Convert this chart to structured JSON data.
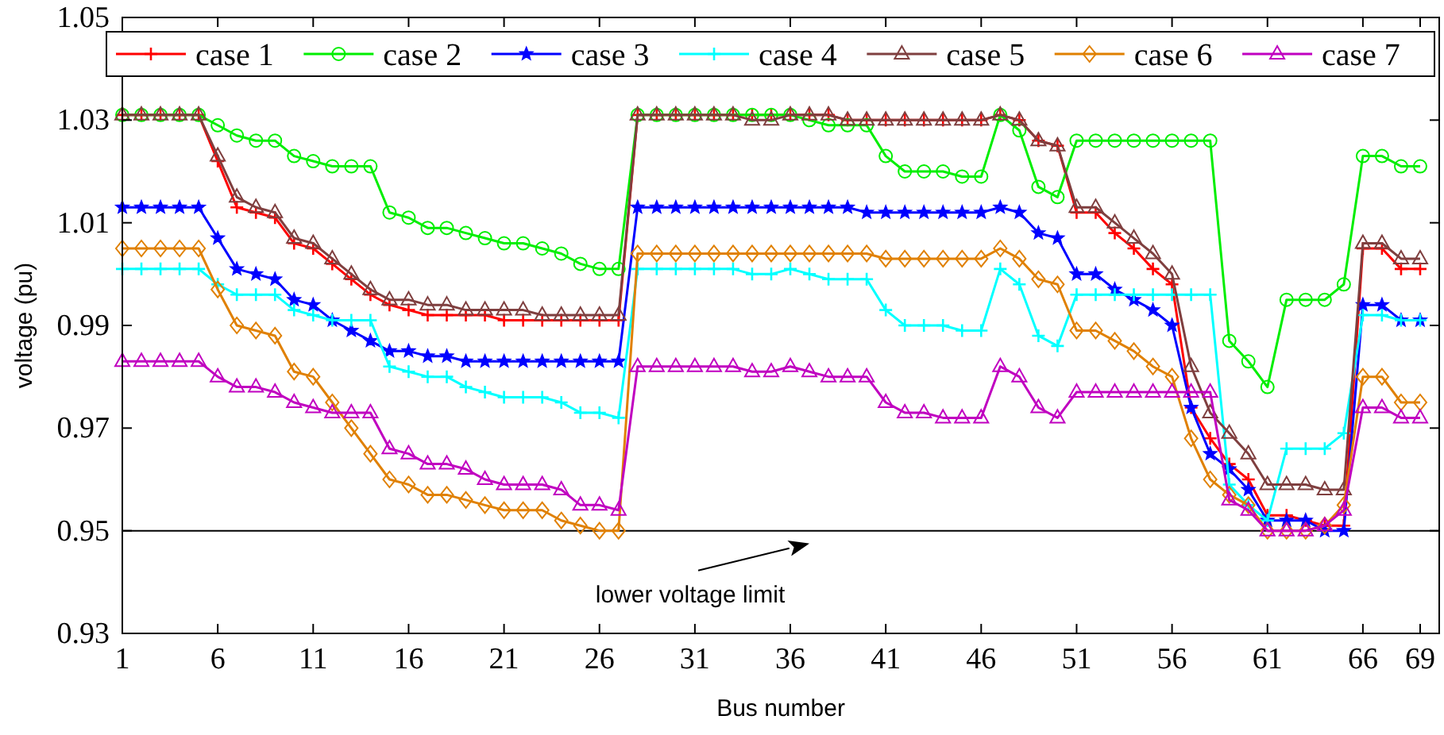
{
  "chart_data": {
    "type": "line",
    "xlabel": "Bus number",
    "ylabel": "voltage (pu)",
    "x": [
      1,
      2,
      3,
      4,
      5,
      6,
      7,
      8,
      9,
      10,
      11,
      12,
      13,
      14,
      15,
      16,
      17,
      18,
      19,
      20,
      21,
      22,
      23,
      24,
      25,
      26,
      27,
      28,
      29,
      30,
      31,
      32,
      33,
      34,
      35,
      36,
      37,
      38,
      39,
      40,
      41,
      42,
      43,
      44,
      45,
      46,
      47,
      48,
      49,
      50,
      51,
      52,
      53,
      54,
      55,
      56,
      57,
      58,
      59,
      60,
      61,
      62,
      63,
      64,
      65,
      66,
      67,
      68,
      69
    ],
    "xlim": [
      1,
      70
    ],
    "xticks": [
      1,
      6,
      11,
      16,
      21,
      26,
      31,
      36,
      41,
      46,
      51,
      56,
      61,
      66,
      69
    ],
    "ylim": [
      0.93,
      1.05
    ],
    "yticks": [
      0.93,
      0.95,
      0.97,
      0.99,
      1.01,
      1.03,
      1.05
    ],
    "legend": "top",
    "line_style": "solid",
    "series": [
      {
        "name": "case 1",
        "color": "#ff0000",
        "marker": "cross",
        "values": [
          1.031,
          1.031,
          1.031,
          1.031,
          1.031,
          1.022,
          1.013,
          1.012,
          1.011,
          1.006,
          1.005,
          1.002,
          0.999,
          0.996,
          0.994,
          0.993,
          0.992,
          0.992,
          0.992,
          0.992,
          0.991,
          0.991,
          0.991,
          0.991,
          0.991,
          0.991,
          0.991,
          1.031,
          1.031,
          1.031,
          1.031,
          1.031,
          1.031,
          1.031,
          1.031,
          1.031,
          1.031,
          1.031,
          1.03,
          1.03,
          1.03,
          1.03,
          1.03,
          1.03,
          1.03,
          1.03,
          1.031,
          1.03,
          1.026,
          1.025,
          1.012,
          1.012,
          1.008,
          1.005,
          1.001,
          0.998,
          0.974,
          0.968,
          0.963,
          0.96,
          0.953,
          0.953,
          0.952,
          0.951,
          0.951,
          1.005,
          1.005,
          1.001,
          1.001
        ]
      },
      {
        "name": "case 2",
        "color": "#00ee00",
        "marker": "circle",
        "values": [
          1.031,
          1.031,
          1.031,
          1.031,
          1.031,
          1.029,
          1.027,
          1.026,
          1.026,
          1.023,
          1.022,
          1.021,
          1.021,
          1.021,
          1.012,
          1.011,
          1.009,
          1.009,
          1.008,
          1.007,
          1.006,
          1.006,
          1.005,
          1.004,
          1.002,
          1.001,
          1.001,
          1.031,
          1.031,
          1.031,
          1.031,
          1.031,
          1.031,
          1.031,
          1.031,
          1.031,
          1.03,
          1.029,
          1.029,
          1.029,
          1.023,
          1.02,
          1.02,
          1.02,
          1.019,
          1.019,
          1.031,
          1.028,
          1.017,
          1.015,
          1.026,
          1.026,
          1.026,
          1.026,
          1.026,
          1.026,
          1.026,
          1.026,
          0.987,
          0.983,
          0.978,
          0.995,
          0.995,
          0.995,
          0.998,
          1.023,
          1.023,
          1.021,
          1.021
        ]
      },
      {
        "name": "case 3",
        "color": "#0000ff",
        "marker": "star",
        "values": [
          1.013,
          1.013,
          1.013,
          1.013,
          1.013,
          1.007,
          1.001,
          1.0,
          0.999,
          0.995,
          0.994,
          0.991,
          0.989,
          0.987,
          0.985,
          0.985,
          0.984,
          0.984,
          0.983,
          0.983,
          0.983,
          0.983,
          0.983,
          0.983,
          0.983,
          0.983,
          0.983,
          1.013,
          1.013,
          1.013,
          1.013,
          1.013,
          1.013,
          1.013,
          1.013,
          1.013,
          1.013,
          1.013,
          1.013,
          1.012,
          1.012,
          1.012,
          1.012,
          1.012,
          1.012,
          1.012,
          1.013,
          1.012,
          1.008,
          1.007,
          1.0,
          1.0,
          0.997,
          0.995,
          0.993,
          0.99,
          0.974,
          0.965,
          0.962,
          0.958,
          0.952,
          0.952,
          0.952,
          0.95,
          0.95,
          0.994,
          0.994,
          0.991,
          0.991
        ]
      },
      {
        "name": "case 4",
        "color": "#00ffff",
        "marker": "cross",
        "values": [
          1.001,
          1.001,
          1.001,
          1.001,
          1.001,
          0.998,
          0.996,
          0.996,
          0.996,
          0.993,
          0.992,
          0.991,
          0.991,
          0.991,
          0.982,
          0.981,
          0.98,
          0.98,
          0.978,
          0.977,
          0.976,
          0.976,
          0.976,
          0.975,
          0.973,
          0.973,
          0.972,
          1.001,
          1.001,
          1.001,
          1.001,
          1.001,
          1.001,
          1.0,
          1.0,
          1.001,
          1.0,
          0.999,
          0.999,
          0.999,
          0.993,
          0.99,
          0.99,
          0.99,
          0.989,
          0.989,
          1.001,
          0.998,
          0.988,
          0.986,
          0.996,
          0.996,
          0.996,
          0.996,
          0.996,
          0.996,
          0.996,
          0.996,
          0.959,
          0.955,
          0.952,
          0.966,
          0.966,
          0.966,
          0.969,
          0.992,
          0.992,
          0.991,
          0.991
        ]
      },
      {
        "name": "case 5",
        "color": "#7f3f3f",
        "marker": "triangle",
        "values": [
          1.031,
          1.031,
          1.031,
          1.031,
          1.031,
          1.023,
          1.015,
          1.013,
          1.012,
          1.007,
          1.006,
          1.003,
          1.0,
          0.997,
          0.995,
          0.995,
          0.994,
          0.994,
          0.993,
          0.993,
          0.993,
          0.993,
          0.992,
          0.992,
          0.992,
          0.992,
          0.992,
          1.031,
          1.031,
          1.031,
          1.031,
          1.031,
          1.031,
          1.03,
          1.03,
          1.031,
          1.031,
          1.031,
          1.03,
          1.03,
          1.03,
          1.03,
          1.03,
          1.03,
          1.03,
          1.03,
          1.031,
          1.03,
          1.026,
          1.025,
          1.013,
          1.013,
          1.01,
          1.007,
          1.004,
          1.0,
          0.982,
          0.973,
          0.969,
          0.965,
          0.959,
          0.959,
          0.959,
          0.958,
          0.958,
          1.006,
          1.006,
          1.003,
          1.003
        ]
      },
      {
        "name": "case 6",
        "color": "#e08000",
        "marker": "diamond",
        "values": [
          1.005,
          1.005,
          1.005,
          1.005,
          1.005,
          0.997,
          0.99,
          0.989,
          0.988,
          0.981,
          0.98,
          0.975,
          0.97,
          0.965,
          0.96,
          0.959,
          0.957,
          0.957,
          0.956,
          0.955,
          0.954,
          0.954,
          0.954,
          0.952,
          0.951,
          0.95,
          0.95,
          1.004,
          1.004,
          1.004,
          1.004,
          1.004,
          1.004,
          1.004,
          1.004,
          1.004,
          1.004,
          1.004,
          1.004,
          1.004,
          1.003,
          1.003,
          1.003,
          1.003,
          1.003,
          1.003,
          1.005,
          1.003,
          0.999,
          0.998,
          0.989,
          0.989,
          0.987,
          0.985,
          0.982,
          0.98,
          0.968,
          0.96,
          0.957,
          0.955,
          0.95,
          0.95,
          0.95,
          0.951,
          0.955,
          0.98,
          0.98,
          0.975,
          0.975
        ]
      },
      {
        "name": "case 7",
        "color": "#c000c0",
        "marker": "triangle",
        "values": [
          0.983,
          0.983,
          0.983,
          0.983,
          0.983,
          0.98,
          0.978,
          0.978,
          0.977,
          0.975,
          0.974,
          0.973,
          0.973,
          0.973,
          0.966,
          0.965,
          0.963,
          0.963,
          0.962,
          0.96,
          0.959,
          0.959,
          0.959,
          0.958,
          0.955,
          0.955,
          0.954,
          0.982,
          0.982,
          0.982,
          0.982,
          0.982,
          0.982,
          0.981,
          0.981,
          0.982,
          0.981,
          0.98,
          0.98,
          0.98,
          0.975,
          0.973,
          0.973,
          0.972,
          0.972,
          0.972,
          0.982,
          0.98,
          0.974,
          0.972,
          0.977,
          0.977,
          0.977,
          0.977,
          0.977,
          0.977,
          0.977,
          0.977,
          0.956,
          0.954,
          0.95,
          0.95,
          0.95,
          0.951,
          0.954,
          0.974,
          0.974,
          0.972,
          0.972
        ]
      }
    ],
    "ref_lines": [
      {
        "axis": "y",
        "value": 0.95,
        "color": "#000000",
        "line_style": "solid"
      }
    ],
    "annotations": [
      {
        "text": "lower voltage limit",
        "x": 37,
        "y": 0.95
      }
    ]
  }
}
